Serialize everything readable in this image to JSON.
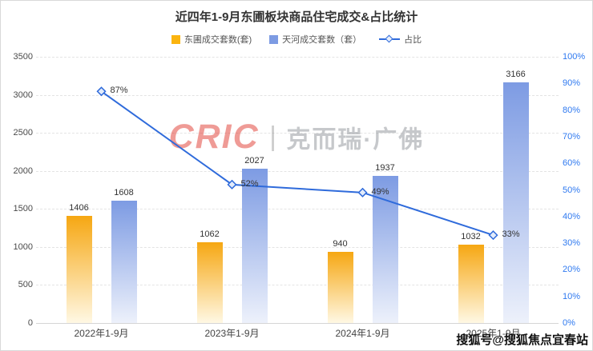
{
  "chart": {
    "title": "近四年1-9月东圃板块商品住宅成交&占比统计",
    "legend": [
      {
        "key": "dongpu",
        "label": "东圃成交套数(套)",
        "type": "bar",
        "color": "#fbb40f"
      },
      {
        "key": "tianhe",
        "label": "天河成交套数（套）",
        "type": "bar",
        "color": "#7d9be3"
      },
      {
        "key": "ratio",
        "label": "占比",
        "type": "line",
        "color": "#2f6bdb"
      }
    ]
  },
  "chart_data": {
    "type": "bar+line",
    "categories": [
      "2022年1-9月",
      "2023年1-9月",
      "2024年1-9月",
      "2025年1-9月"
    ],
    "series": [
      {
        "key": "dongpu",
        "name": "东圃成交套数(套)",
        "type": "bar",
        "axis": "left",
        "values": [
          1406,
          1062,
          940,
          1032
        ],
        "color_top": "#f6a712",
        "color_bottom": "#fff8e4"
      },
      {
        "key": "tianhe",
        "name": "天河成交套数（套）",
        "type": "bar",
        "axis": "left",
        "values": [
          1608,
          2027,
          1937,
          3166
        ],
        "color_top": "#7d9be3",
        "color_bottom": "#edf1fb"
      },
      {
        "key": "ratio",
        "name": "占比",
        "type": "line",
        "axis": "right",
        "values": [
          87,
          52,
          49,
          33
        ],
        "labels": [
          "87%",
          "52%",
          "49%",
          "33%"
        ],
        "color": "#2f6bdb",
        "marker": "diamond",
        "marker_fill": "#e3ecfb"
      }
    ],
    "left_axis": {
      "min": 0,
      "max": 3500,
      "step": 500,
      "ticks": [
        0,
        500,
        1000,
        1500,
        2000,
        2500,
        3000,
        3500
      ]
    },
    "right_axis": {
      "min": 0,
      "max": 100,
      "step": 10,
      "unit": "%",
      "ticks": [
        0,
        10,
        20,
        30,
        40,
        50,
        60,
        70,
        80,
        90,
        100
      ]
    },
    "grid": "horizontal-dashed",
    "legend_position": "top"
  },
  "watermark": {
    "brand": "CRIC",
    "divider": "|",
    "name": "克而瑞·广佛"
  },
  "footer": {
    "credit": "搜狐号@搜狐焦点宜春站"
  }
}
